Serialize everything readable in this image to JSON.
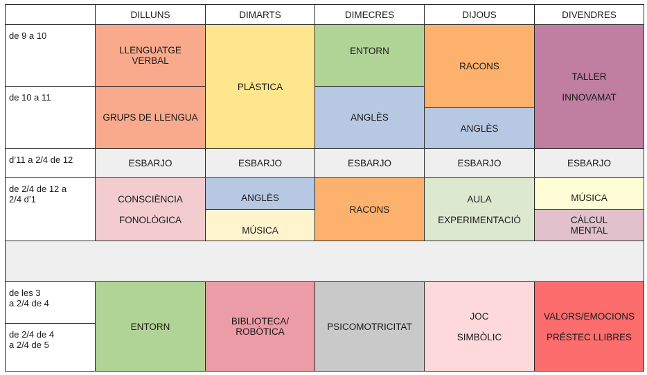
{
  "days": [
    "DILLUNS",
    "DIMARTS",
    "DIMECRES",
    "DIJOUS",
    "DIVENDRES"
  ],
  "times": {
    "t1": "de 9 a 10",
    "t2": "de 10 a 11",
    "t3": "d’11 a 2/4 de 12",
    "t4a": "de 2/4 de 12 a",
    "t4b": "2/4 d’1",
    "t5a": "de les 3",
    "t5b": "a 2/4 de 4",
    "t6a": "de 2/4 de 4",
    "t6b": "a 2/4 de 5"
  },
  "cells": {
    "dl_1a": "LLENGUATGE",
    "dl_1b": "VERBAL",
    "dl_2": "GRUPS DE LLENGUA",
    "dm_1": "PLÀSTICA",
    "dc_1": "ENTORN",
    "dc_2": "ANGLÈS",
    "dj_1": "RACONS",
    "dj_2": "ANGLÈS",
    "dv_1a": "TALLER",
    "dv_1b": "INNOVAMAT",
    "esbarjo": "ESBARJO",
    "dl_3a": "CONSCIÈNCIA",
    "dl_3b": "FONOLÒGICA",
    "dm_3": "ANGLÈS",
    "dm_4": "MÚSICA",
    "dc_3": "RACONS",
    "dj_3a": "AULA",
    "dj_3b": "EXPERIMENTACIÓ",
    "dv_3": "MÚSICA",
    "dv_4a": "CÀLCUL",
    "dv_4b": "MENTAL",
    "dl_5": "ENTORN",
    "dm_5a": "BIBLIOTECA/",
    "dm_5b": "ROBÒTICA",
    "dc_5": "PSICOMOTRICITAT",
    "dj_5a": "JOC",
    "dj_5b": "SIMBÒLIC",
    "dv_5a": "VALORS/EMOCIONS",
    "dv_5b": "PRÉSTEC LLIBRES"
  },
  "colors": {
    "salmon": "#f9a98c",
    "yellow": "#fde68e",
    "green": "#b0d496",
    "blue": "#b7c9e2",
    "orange": "#fcb16c",
    "purple": "#c07ea0",
    "pink": "#f3cccf",
    "paleyellow": "#fff4cd",
    "palegreen": "#dce9cf",
    "lightyellow": "#fefdd5",
    "mauve": "#e0c1cc",
    "rose": "#ec9ca6",
    "grey": "#c9c9c9",
    "lightpink": "#fed9db",
    "red": "#fd6d6d",
    "lightgrey": "#efefef"
  }
}
